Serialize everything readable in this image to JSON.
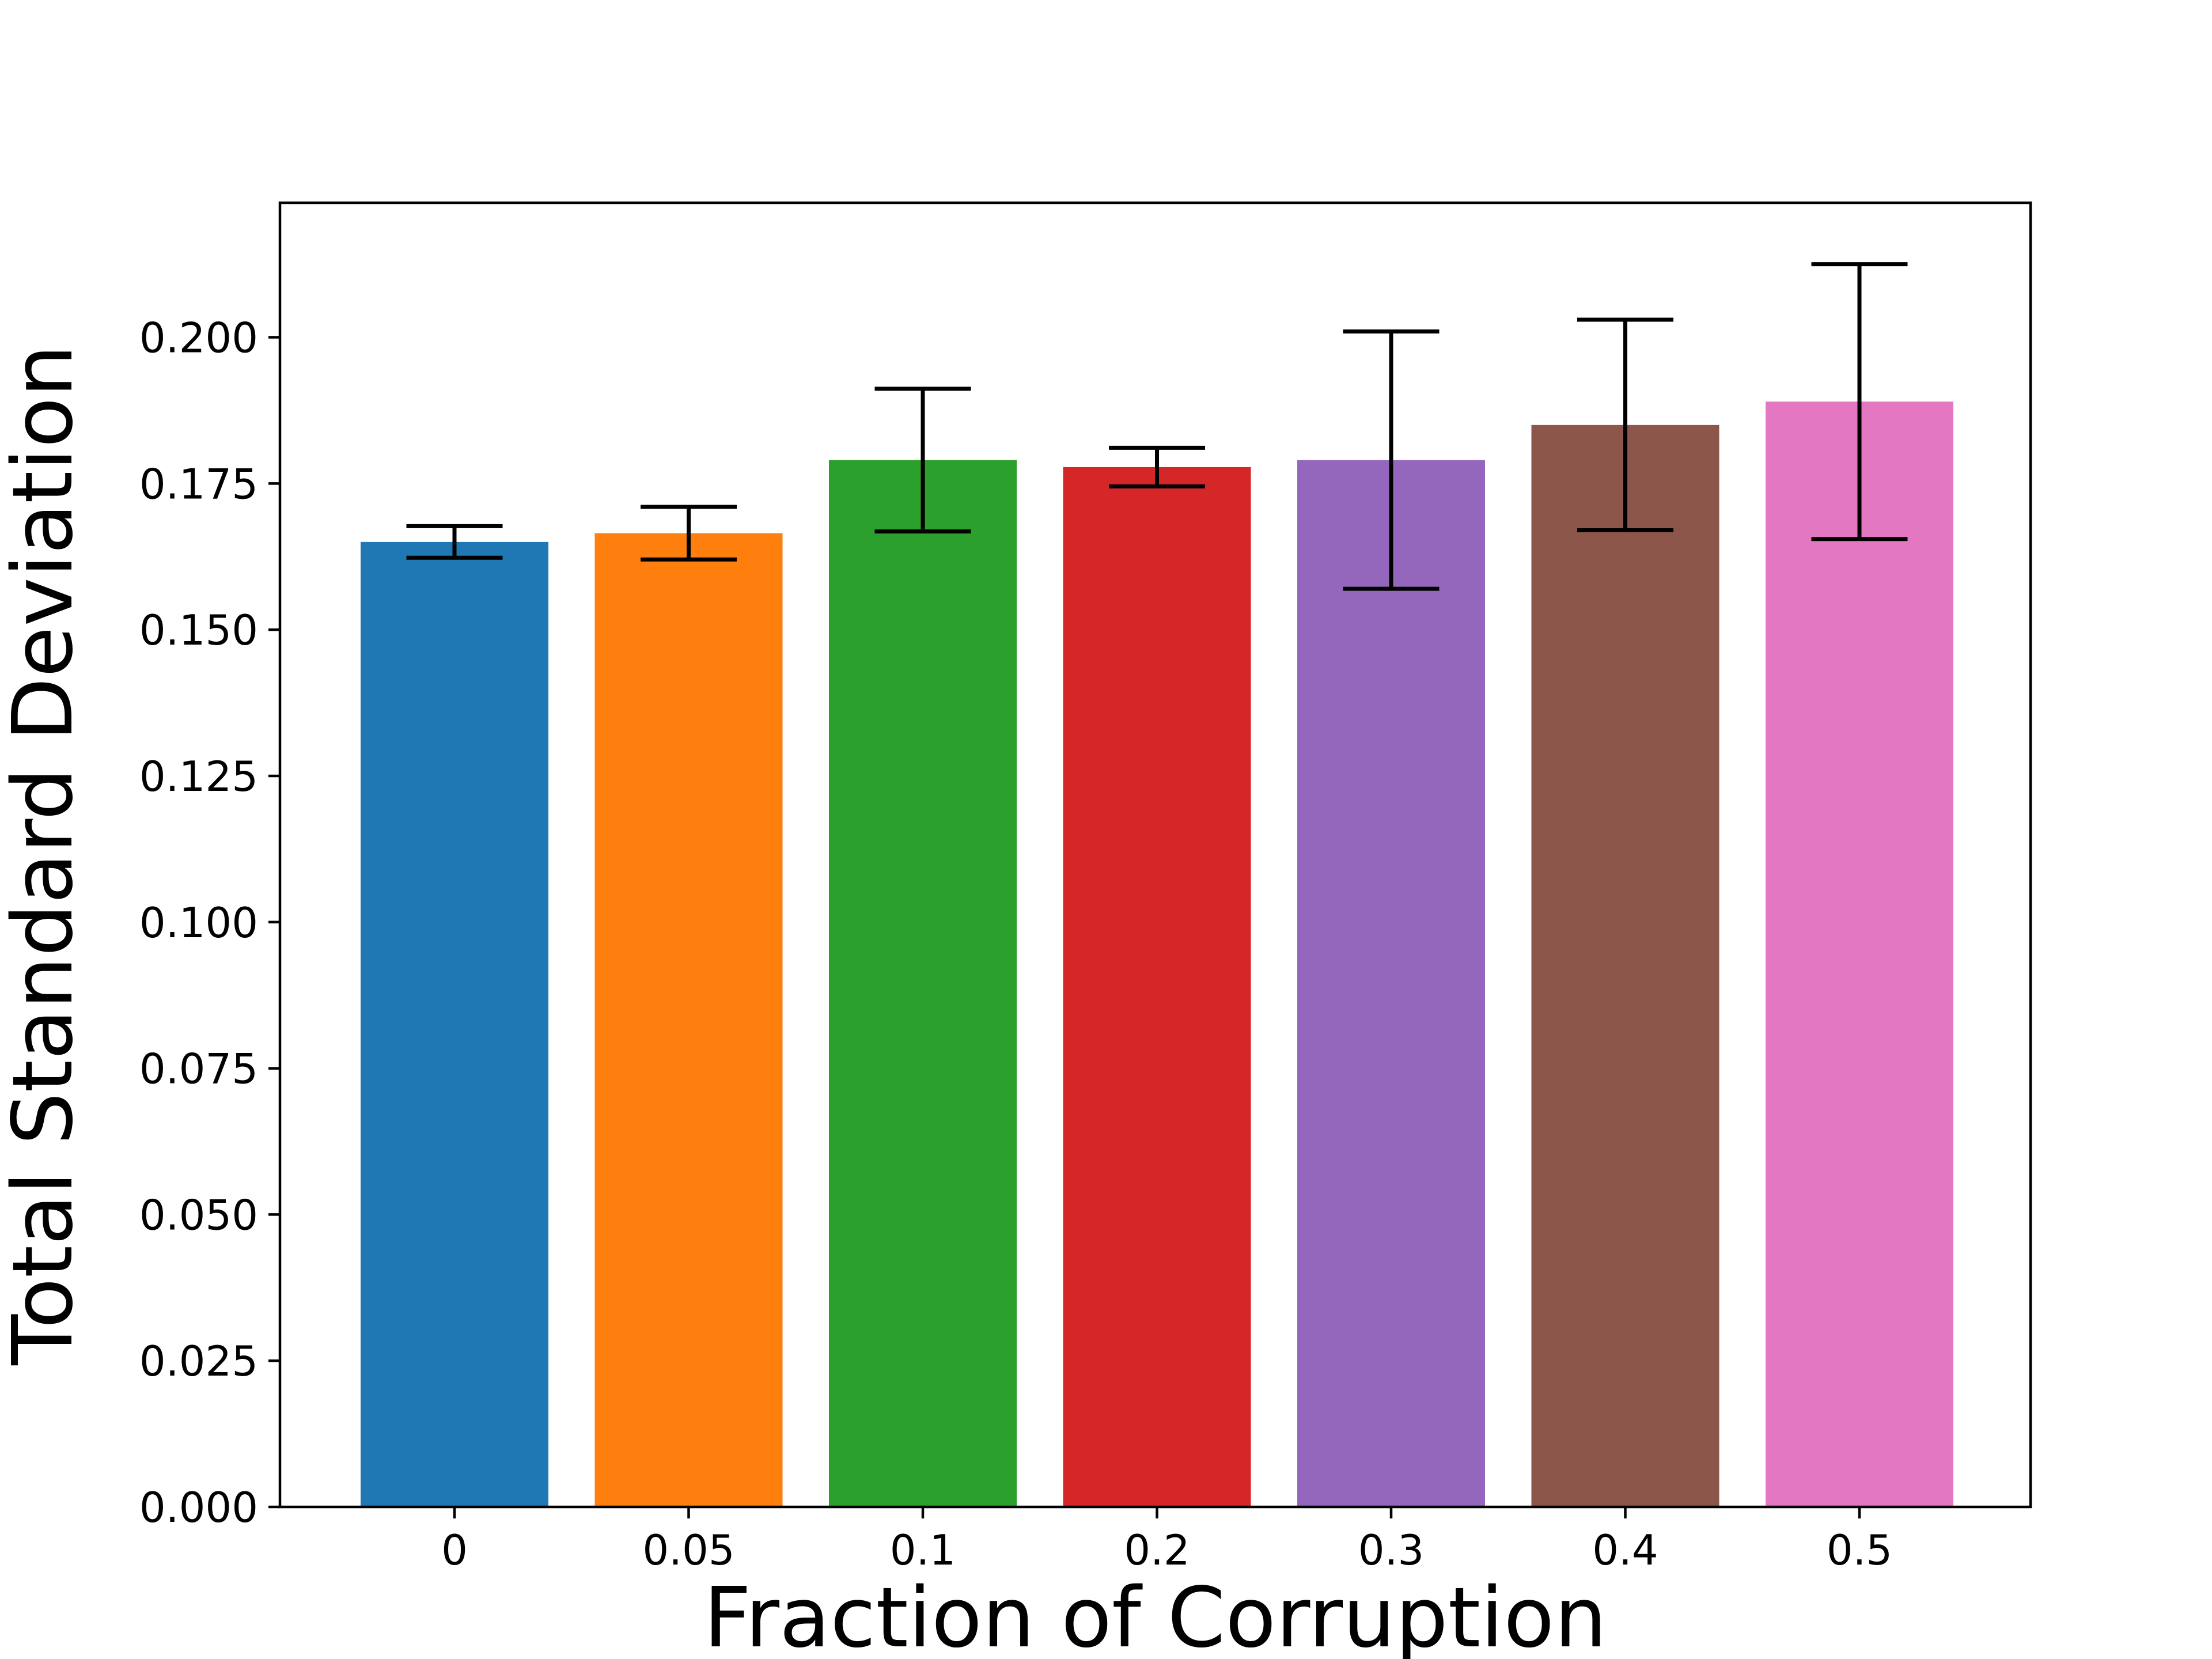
{
  "chart_data": {
    "type": "bar",
    "title": "",
    "xlabel": "Fraction of Corruption",
    "ylabel": "Total Standard Deviation",
    "categories": [
      "0",
      "0.05",
      "0.1",
      "0.2",
      "0.3",
      "0.4",
      "0.5"
    ],
    "values": [
      0.165,
      0.1665,
      0.179,
      0.1778,
      0.179,
      0.185,
      0.189
    ],
    "error": [
      0.0027,
      0.0045,
      0.0122,
      0.0033,
      0.022,
      0.018,
      0.0235
    ],
    "colors": [
      "#1f77b4",
      "#ff7f0e",
      "#2ca02c",
      "#d62728",
      "#9467bd",
      "#8c564b",
      "#e377c2"
    ],
    "ylim": [
      0,
      0.223
    ],
    "yticks": [
      0,
      0.025,
      0.05,
      0.075,
      0.1,
      0.125,
      0.15,
      0.175,
      0.2
    ],
    "ytick_labels": [
      "0.000",
      "0.025",
      "0.050",
      "0.075",
      "0.100",
      "0.125",
      "0.150",
      "0.175",
      "0.200"
    ],
    "grid": false,
    "legend": "none"
  }
}
